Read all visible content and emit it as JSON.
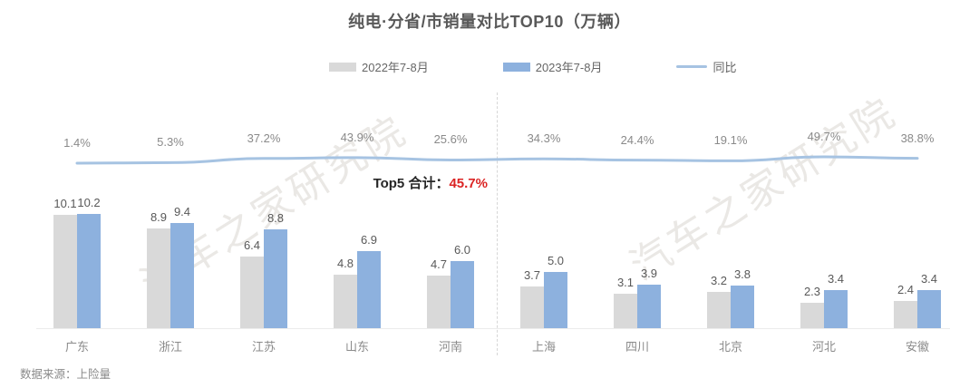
{
  "title": "纯电·分省/市销量对比TOP10（万辆）",
  "legend": [
    {
      "label": "2022年7-8月",
      "color": "#d9d9d9"
    },
    {
      "label": "2023年7-8月",
      "color": "#8db1de"
    },
    {
      "label": "同比",
      "color": "#a6c3e2"
    }
  ],
  "annotation": {
    "prefix": "Top5 合计：",
    "value": "45.7%",
    "value_color": "#db2424"
  },
  "footer": "数据来源：上险量",
  "watermark": "汽车之家研究院",
  "chart_data": {
    "type": "bar",
    "title": "纯电·分省/市销量对比TOP10（万辆）",
    "unit": "万辆",
    "categories": [
      "广东",
      "浙江",
      "江苏",
      "山东",
      "河南",
      "上海",
      "四川",
      "北京",
      "河北",
      "安徽"
    ],
    "series": [
      {
        "name": "2022年7-8月",
        "type": "bar",
        "color": "#d9d9d9",
        "values": [
          10.1,
          8.9,
          6.4,
          4.8,
          4.7,
          3.7,
          3.1,
          3.2,
          2.3,
          2.4
        ],
        "labels": [
          "10.1",
          "8.9",
          "6.4",
          "4.8",
          "4.7",
          "3.7",
          "3.1",
          "3.2",
          "2.3",
          "2.4"
        ]
      },
      {
        "name": "2023年7-8月",
        "type": "bar",
        "color": "#8db1de",
        "values": [
          10.2,
          9.4,
          8.8,
          6.9,
          6.0,
          5.0,
          3.9,
          3.8,
          3.4,
          3.4
        ],
        "labels": [
          "10.2",
          "9.4",
          "8.8",
          "6.9",
          "6.0",
          "5.0",
          "3.9",
          "3.8",
          "3.4",
          "3.4"
        ]
      },
      {
        "name": "同比",
        "type": "line",
        "color": "#a6c3e2",
        "values": [
          1.4,
          5.3,
          37.2,
          43.9,
          25.6,
          34.3,
          24.4,
          19.1,
          49.7,
          38.8
        ],
        "labels": [
          "1.4%",
          "5.3%",
          "37.2%",
          "43.9%",
          "25.6%",
          "34.3%",
          "24.4%",
          "19.1%",
          "49.7%",
          "38.8%"
        ]
      }
    ],
    "annotations": [
      "Top5 合计：45.7%"
    ],
    "ylim": [
      0,
      11
    ],
    "grid": false,
    "legend_position": "top",
    "divider_after_category": "河南",
    "source_note": "数据来源：上险量"
  }
}
